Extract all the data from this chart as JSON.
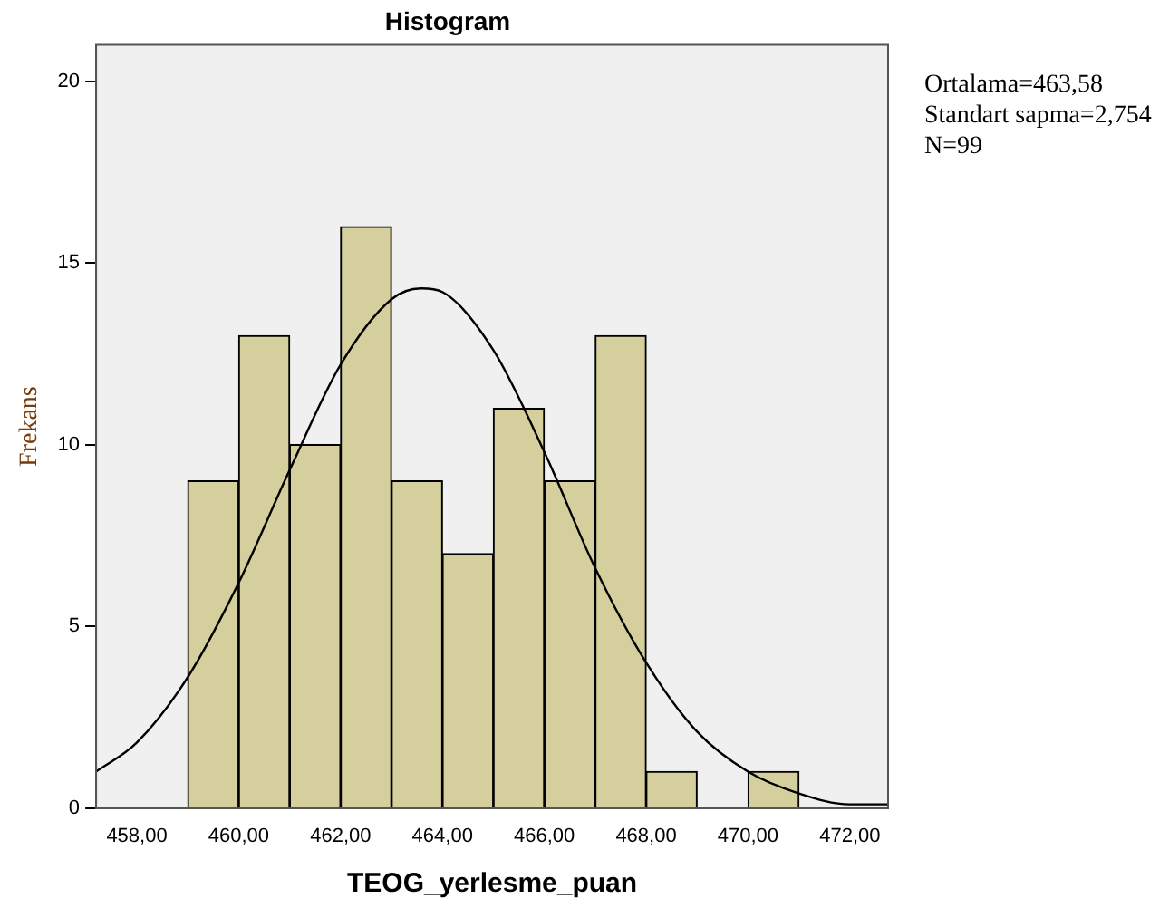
{
  "chart_data": {
    "type": "histogram",
    "title": "Histogram",
    "xlabel": "TEOG_yerlesme_puan",
    "ylabel": "Frekans",
    "bins": [
      459,
      460,
      461,
      462,
      463,
      464,
      465,
      466,
      467,
      468,
      469,
      470,
      471
    ],
    "values": [
      9,
      13,
      10,
      16,
      9,
      7,
      11,
      9,
      13,
      1,
      0,
      1
    ],
    "color": "#d4cf9c",
    "series": [
      {
        "type": "line",
        "color": "#000000",
        "x": [
          457.2,
          458,
          459,
          460,
          461,
          462,
          463,
          463.58,
          464,
          465,
          466,
          467,
          468,
          469,
          470,
          471,
          472,
          472.75
        ],
        "values": [
          1.0,
          1.8,
          3.6,
          6.2,
          9.3,
          12.2,
          14.0,
          14.3,
          14.2,
          12.6,
          9.8,
          6.6,
          4.0,
          2.1,
          1.0,
          0.4,
          0.1,
          0.1
        ]
      }
    ],
    "xlim": [
      457.2,
      472.75
    ],
    "xticks": [
      {
        "value": 458,
        "label": "458,00"
      },
      {
        "value": 460,
        "label": "460,00"
      },
      {
        "value": 462,
        "label": "462,00"
      },
      {
        "value": 464,
        "label": "464,00"
      },
      {
        "value": 466,
        "label": "466,00"
      },
      {
        "value": 468,
        "label": "468,00"
      },
      {
        "value": 470,
        "label": "470,00"
      },
      {
        "value": 472,
        "label": "472,00"
      }
    ],
    "ylim": [
      0,
      21
    ],
    "yticks": [
      0,
      5,
      10,
      15,
      20
    ],
    "grid": false,
    "legend": false,
    "marker": "none",
    "annotations": [
      "Ortalama=463,58",
      "Standart sapma=2,754",
      "N=99"
    ]
  }
}
